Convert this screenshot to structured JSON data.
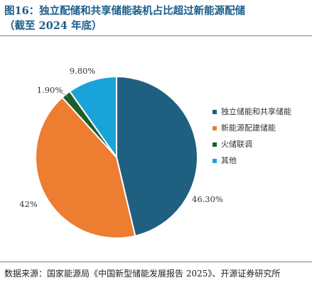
{
  "header": {
    "title_line1": "图16：独立配储和共享储能装机占比超过新能源配储",
    "title_line2": "（截至 2024 年底）"
  },
  "chart_data": {
    "type": "pie",
    "title": "图16：独立配储和共享储能装机占比超过新能源配储（截至 2024 年底）",
    "series": [
      {
        "name": "",
        "categories": [
          "独立储能和共享储能",
          "新能源配建储能",
          "火储联调",
          "其他"
        ],
        "values": [
          46.3,
          42,
          1.9,
          9.8
        ],
        "labels": [
          "46.30%",
          "42%",
          "1.90%",
          "9.80%"
        ],
        "colors": [
          "#1f5f7f",
          "#ed7d31",
          "#1e5c2a",
          "#1aa3d9"
        ]
      }
    ],
    "start_angle": "12 o'clock",
    "direction": "clockwise",
    "legend": "right"
  },
  "footer": {
    "source": "数据来源：国家能源局《中国新型储能发展报告 2025》、开源证券研究所"
  }
}
